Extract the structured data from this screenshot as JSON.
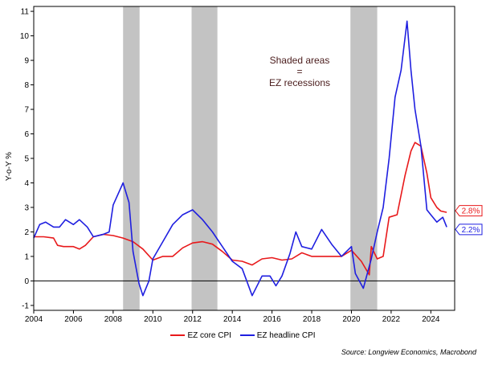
{
  "chart_data": {
    "type": "line",
    "title": "",
    "xlabel": "",
    "ylabel": "Y-o-Y %",
    "xlim": [
      2004,
      2025.2
    ],
    "ylim": [
      -1.2,
      11.2
    ],
    "x_ticks": [
      "2004",
      "2006",
      "2008",
      "2010",
      "2012",
      "2014",
      "2016",
      "2018",
      "2020",
      "2022",
      "2024"
    ],
    "y_ticks": [
      "-1",
      "0",
      "1",
      "2",
      "3",
      "4",
      "5",
      "6",
      "7",
      "8",
      "9",
      "10",
      "11"
    ],
    "recessions": [
      [
        2008.5,
        2009.33
      ],
      [
        2011.95,
        2013.25
      ],
      [
        2019.95,
        2021.3
      ]
    ],
    "annotation": [
      "Shaded areas",
      "=",
      "EZ recessions"
    ],
    "series": [
      {
        "name": "EZ core CPI",
        "color": "#e8191b",
        "end_label": "2.8%",
        "points": [
          [
            2004.0,
            1.8
          ],
          [
            2004.5,
            1.8
          ],
          [
            2005.0,
            1.75
          ],
          [
            2005.2,
            1.45
          ],
          [
            2005.5,
            1.4
          ],
          [
            2006.0,
            1.4
          ],
          [
            2006.3,
            1.3
          ],
          [
            2006.6,
            1.45
          ],
          [
            2007.0,
            1.8
          ],
          [
            2007.5,
            1.9
          ],
          [
            2008.0,
            1.85
          ],
          [
            2008.5,
            1.75
          ],
          [
            2009.0,
            1.6
          ],
          [
            2009.5,
            1.3
          ],
          [
            2010.0,
            0.85
          ],
          [
            2010.5,
            1.0
          ],
          [
            2011.0,
            1.0
          ],
          [
            2011.5,
            1.35
          ],
          [
            2012.0,
            1.55
          ],
          [
            2012.5,
            1.6
          ],
          [
            2013.0,
            1.5
          ],
          [
            2013.5,
            1.2
          ],
          [
            2014.0,
            0.85
          ],
          [
            2014.5,
            0.8
          ],
          [
            2015.0,
            0.65
          ],
          [
            2015.5,
            0.9
          ],
          [
            2016.0,
            0.95
          ],
          [
            2016.5,
            0.85
          ],
          [
            2017.0,
            0.9
          ],
          [
            2017.5,
            1.15
          ],
          [
            2018.0,
            1.0
          ],
          [
            2018.5,
            1.0
          ],
          [
            2019.0,
            1.0
          ],
          [
            2019.5,
            1.0
          ],
          [
            2020.0,
            1.25
          ],
          [
            2020.5,
            0.8
          ],
          [
            2020.9,
            0.25
          ],
          [
            2021.0,
            1.4
          ],
          [
            2021.3,
            0.9
          ],
          [
            2021.6,
            1.0
          ],
          [
            2021.9,
            2.6
          ],
          [
            2022.3,
            2.7
          ],
          [
            2022.7,
            4.3
          ],
          [
            2023.0,
            5.3
          ],
          [
            2023.2,
            5.65
          ],
          [
            2023.5,
            5.5
          ],
          [
            2023.8,
            4.4
          ],
          [
            2024.0,
            3.4
          ],
          [
            2024.3,
            3.0
          ],
          [
            2024.5,
            2.85
          ],
          [
            2024.8,
            2.8
          ]
        ]
      },
      {
        "name": "EZ headline CPI",
        "color": "#1f1fe0",
        "end_label": "2.2%",
        "points": [
          [
            2004.0,
            1.75
          ],
          [
            2004.3,
            2.3
          ],
          [
            2004.6,
            2.4
          ],
          [
            2005.0,
            2.2
          ],
          [
            2005.3,
            2.2
          ],
          [
            2005.6,
            2.5
          ],
          [
            2006.0,
            2.3
          ],
          [
            2006.3,
            2.5
          ],
          [
            2006.7,
            2.2
          ],
          [
            2007.0,
            1.8
          ],
          [
            2007.5,
            1.9
          ],
          [
            2007.8,
            2.0
          ],
          [
            2008.0,
            3.1
          ],
          [
            2008.5,
            4.0
          ],
          [
            2008.8,
            3.2
          ],
          [
            2009.0,
            1.2
          ],
          [
            2009.3,
            -0.1
          ],
          [
            2009.5,
            -0.6
          ],
          [
            2009.8,
            0.0
          ],
          [
            2010.0,
            0.9
          ],
          [
            2010.5,
            1.6
          ],
          [
            2011.0,
            2.3
          ],
          [
            2011.5,
            2.7
          ],
          [
            2012.0,
            2.9
          ],
          [
            2012.5,
            2.5
          ],
          [
            2013.0,
            2.0
          ],
          [
            2013.5,
            1.4
          ],
          [
            2014.0,
            0.8
          ],
          [
            2014.5,
            0.5
          ],
          [
            2015.0,
            -0.6
          ],
          [
            2015.5,
            0.2
          ],
          [
            2015.9,
            0.2
          ],
          [
            2016.2,
            -0.2
          ],
          [
            2016.5,
            0.2
          ],
          [
            2016.9,
            1.1
          ],
          [
            2017.2,
            2.0
          ],
          [
            2017.5,
            1.4
          ],
          [
            2018.0,
            1.3
          ],
          [
            2018.5,
            2.1
          ],
          [
            2019.0,
            1.5
          ],
          [
            2019.5,
            1.0
          ],
          [
            2020.0,
            1.4
          ],
          [
            2020.2,
            0.3
          ],
          [
            2020.6,
            -0.3
          ],
          [
            2021.0,
            0.9
          ],
          [
            2021.3,
            2.0
          ],
          [
            2021.6,
            3.0
          ],
          [
            2021.9,
            5.0
          ],
          [
            2022.2,
            7.5
          ],
          [
            2022.5,
            8.6
          ],
          [
            2022.8,
            10.6
          ],
          [
            2023.0,
            8.6
          ],
          [
            2023.2,
            7.0
          ],
          [
            2023.5,
            5.5
          ],
          [
            2023.8,
            2.9
          ],
          [
            2024.0,
            2.7
          ],
          [
            2024.3,
            2.4
          ],
          [
            2024.6,
            2.6
          ],
          [
            2024.8,
            2.2
          ]
        ]
      }
    ],
    "source": "Source: Longview Economics, Macrobond"
  }
}
